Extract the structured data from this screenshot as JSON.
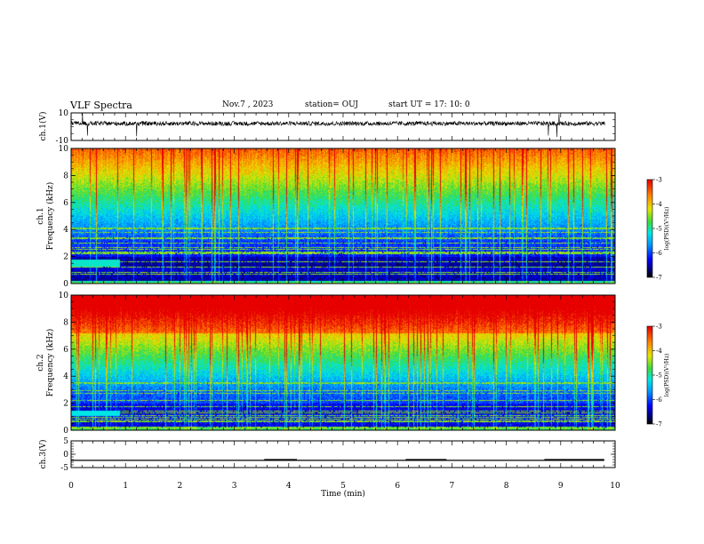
{
  "header": {
    "title": "VLF Spectra",
    "date": "Nov.7 , 2023",
    "station": "station= OUJ",
    "start": "start UT = 17: 10: 0"
  },
  "chart_data": [
    {
      "type": "line",
      "ylabel": "ch.1(V)",
      "ylim": [
        -10,
        10
      ],
      "yticks": [
        "10",
        "-10"
      ],
      "xlim": [
        0,
        10
      ],
      "trace": "noisy waveform centered slightly above 0 V with sparse spikes",
      "color": "#000000"
    },
    {
      "type": "heatmap",
      "ylabel": "ch.1\nFrequency (kHz)",
      "ylim": [
        0,
        10
      ],
      "yticks": [
        "0",
        "2",
        "4",
        "6",
        "8",
        "10"
      ],
      "xlim": [
        0,
        10
      ],
      "colorbar": {
        "label": "log(PSD)(V²/Hz)",
        "range": [
          -7,
          -3
        ],
        "ticks": [
          "-3",
          "-4",
          "-5",
          "-6",
          "-7"
        ]
      }
    },
    {
      "type": "heatmap",
      "ylabel": "ch.2\nFrequency (kHz)",
      "ylim": [
        0,
        10
      ],
      "yticks": [
        "0",
        "2",
        "4",
        "6",
        "8",
        "10"
      ],
      "xlim": [
        0,
        10
      ],
      "colorbar": {
        "label": "log(PSD)(V²/Hz)",
        "range": [
          -7,
          -3
        ],
        "ticks": [
          "-3",
          "-4",
          "-5",
          "-6",
          "-7"
        ]
      }
    },
    {
      "type": "line",
      "ylabel": "ch.3(V)",
      "ylim": [
        -5,
        5
      ],
      "yticks": [
        "5",
        "0",
        "-5"
      ],
      "xlim": [
        0,
        10
      ],
      "xlabel": "Time (min)",
      "xticks": [
        "0",
        "1",
        "2",
        "3",
        "4",
        "5",
        "6",
        "7",
        "8",
        "9",
        "10"
      ],
      "baseline": -2.3,
      "pulse_level": -1.8,
      "pulses": [
        [
          3.55,
          4.15
        ],
        [
          6.15,
          6.9
        ],
        [
          8.7,
          9.8
        ]
      ],
      "data_end": 9.8
    }
  ]
}
